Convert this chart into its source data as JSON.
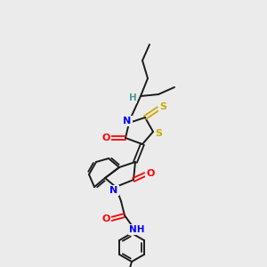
{
  "bg_color": "#ebebeb",
  "atom_colors": {
    "N": "#0000ff",
    "O": "#ff0000",
    "S": "#ccaa00",
    "H_chiral": "#4a9a9a",
    "C": "#1a1a1a"
  },
  "figsize": [
    3.0,
    3.0
  ],
  "dpi": 100
}
